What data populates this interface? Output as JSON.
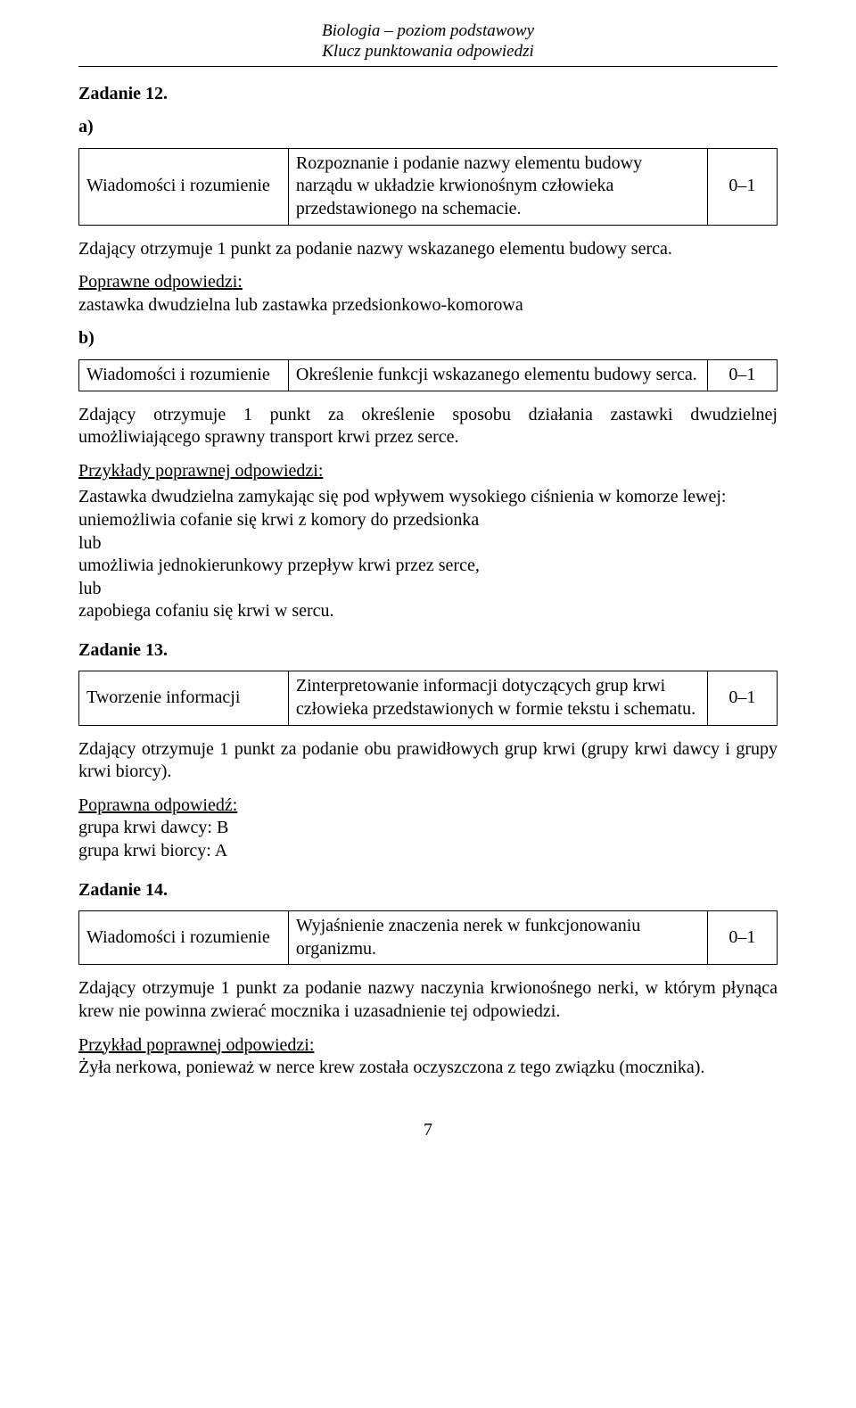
{
  "header": {
    "line1": "Biologia – poziom podstawowy",
    "line2": "Klucz punktowania odpowiedzi"
  },
  "score_label": "0–1",
  "tasks": {
    "t12": {
      "heading": "Zadanie 12.",
      "a": {
        "letter": "a)",
        "row": {
          "left": "Wiadomości i rozumienie",
          "mid": "Rozpoznanie i podanie nazwy elementu budowy narządu w układzie krwionośnym człowieka przedstawionego na schemacie."
        },
        "after1": "Zdający otrzymuje 1 punkt za podanie nazwy wskazanego elementu budowy serca.",
        "ans_label": "Poprawne odpowiedzi:",
        "ans_text": "zastawka dwudzielna lub zastawka przedsionkowo-komorowa"
      },
      "b": {
        "letter": "b)",
        "row": {
          "left": "Wiadomości i rozumienie",
          "mid": "Określenie funkcji wskazanego elementu budowy serca."
        },
        "after1": "Zdający otrzymuje 1 punkt za określenie sposobu działania zastawki dwudzielnej umożliwiającego sprawny transport krwi przez serce.",
        "ex_label": "Przykłady poprawnej odpowiedzi:",
        "ex_lines": [
          "Zastawka dwudzielna zamykając się pod wpływem wysokiego ciśnienia w komorze lewej:",
          "uniemożliwia cofanie się krwi z komory do przedsionka",
          "lub",
          "umożliwia jednokierunkowy przepływ krwi przez serce,",
          "lub",
          "zapobiega cofaniu się krwi w sercu."
        ]
      }
    },
    "t13": {
      "heading": "Zadanie 13.",
      "row": {
        "left": "Tworzenie informacji",
        "mid": "Zinterpretowanie informacji dotyczących grup krwi człowieka przedstawionych w formie tekstu i schematu."
      },
      "after1": "Zdający otrzymuje 1 punkt za podanie obu prawidłowych grup krwi (grupy krwi dawcy i grupy krwi biorcy).",
      "ans_label": "Poprawna odpowiedź:",
      "ans_lines": [
        "grupa krwi dawcy: B",
        "grupa krwi biorcy: A"
      ]
    },
    "t14": {
      "heading": "Zadanie 14.",
      "row": {
        "left": "Wiadomości i rozumienie",
        "mid": "Wyjaśnienie znaczenia nerek w funkcjonowaniu organizmu."
      },
      "after1": "Zdający otrzymuje 1 punkt za podanie nazwy naczynia krwionośnego nerki, w którym płynąca krew nie powinna zwierać mocznika i uzasadnienie tej odpowiedzi.",
      "ex_label": "Przykład poprawnej odpowiedzi:",
      "ex_text": "Żyła nerkowa, ponieważ w nerce krew została oczyszczona z tego związku (mocznika)."
    }
  },
  "page_number": "7"
}
